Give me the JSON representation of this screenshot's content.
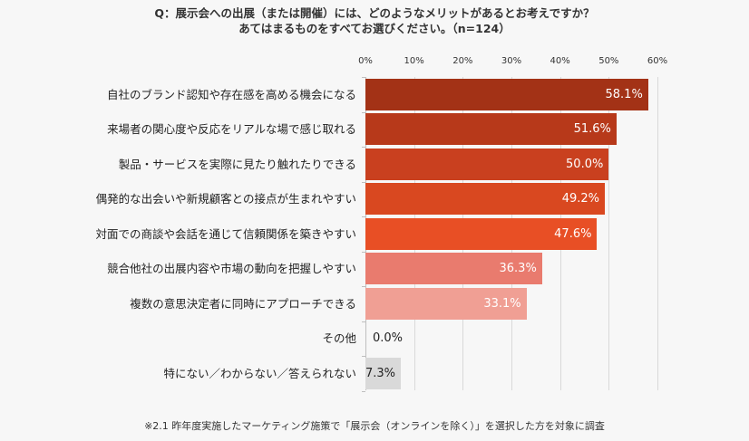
{
  "title": {
    "line1": "Q：展示会への出展（または開催）には、どのようなメリットがあるとお考えですか？",
    "line2": "あてはまるものをすべてお選びください。（n=124）"
  },
  "axis": {
    "ticks": [
      "0%",
      "10%",
      "20%",
      "30%",
      "40%",
      "50%",
      "60%"
    ]
  },
  "rows": [
    {
      "label": "自社のブランド認知や存在感を高める機会になる",
      "value": 58.1,
      "display": "58.1%",
      "color": "#a33216",
      "text_color": "#ffffff"
    },
    {
      "label": "来場者の関心度や反応をリアルな場で感じ取れる",
      "value": 51.6,
      "display": "51.6%",
      "color": "#b7391a",
      "text_color": "#ffffff"
    },
    {
      "label": "製品・サービスを実際に見たり触れたりできる",
      "value": 50.0,
      "display": "50.0%",
      "color": "#c9401f",
      "text_color": "#ffffff"
    },
    {
      "label": "偶発的な出会いや新規顧客との接点が生まれやすい",
      "value": 49.2,
      "display": "49.2%",
      "color": "#d94820",
      "text_color": "#ffffff"
    },
    {
      "label": "対面での商談や会話を通じて信頼関係を築きやすい",
      "value": 47.6,
      "display": "47.6%",
      "color": "#e84f25",
      "text_color": "#ffffff"
    },
    {
      "label": "競合他社の出展内容や市場の動向を把握しやすい",
      "value": 36.3,
      "display": "36.3%",
      "color": "#e97b6e",
      "text_color": "#ffffff"
    },
    {
      "label": "複数の意思決定者に同時にアプローチできる",
      "value": 33.1,
      "display": "33.1%",
      "color": "#f09f94",
      "text_color": "#ffffff"
    },
    {
      "label": "その他",
      "value": 0.0,
      "display": "0.0%",
      "color": "#d9d9d9",
      "text_color": "#222222"
    },
    {
      "label": "特にない／わからない／答えられない",
      "value": 7.3,
      "display": "7.3%",
      "color": "#d9d9d9",
      "text_color": "#222222"
    }
  ],
  "footnote": "※2.1 昨年度実施したマーケティング施策で「展示会（オンラインを除く）」を選択した方を対象に調査",
  "chart_data": {
    "type": "bar",
    "orientation": "horizontal",
    "title": "Q：展示会への出展（または開催）には、どのようなメリットがあるとお考えですか？ あてはまるものをすべてお選びください。（n=124）",
    "categories": [
      "自社のブランド認知や存在感を高める機会になる",
      "来場者の関心度や反応をリアルな場で感じ取れる",
      "製品・サービスを実際に見たり触れたりできる",
      "偶発的な出会いや新規顧客との接点が生まれやすい",
      "対面での商談や会話を通じて信頼関係を築きやすい",
      "競合他社の出展内容や市場の動向を把握しやすい",
      "複数の意思決定者に同時にアプローチできる",
      "その他",
      "特にない／わからない／答えられない"
    ],
    "values": [
      58.1,
      51.6,
      50.0,
      49.2,
      47.6,
      36.3,
      33.1,
      0.0,
      7.3
    ],
    "xlabel": "",
    "ylabel": "",
    "xlim": [
      0,
      60
    ],
    "x_ticks": [
      "0%",
      "10%",
      "20%",
      "30%",
      "40%",
      "50%",
      "60%"
    ],
    "grid": true,
    "legend": null,
    "annotations": [
      "※2.1 昨年度実施したマーケティング施策で「展示会（オンラインを除く）」を選択した方を対象に調査"
    ]
  }
}
